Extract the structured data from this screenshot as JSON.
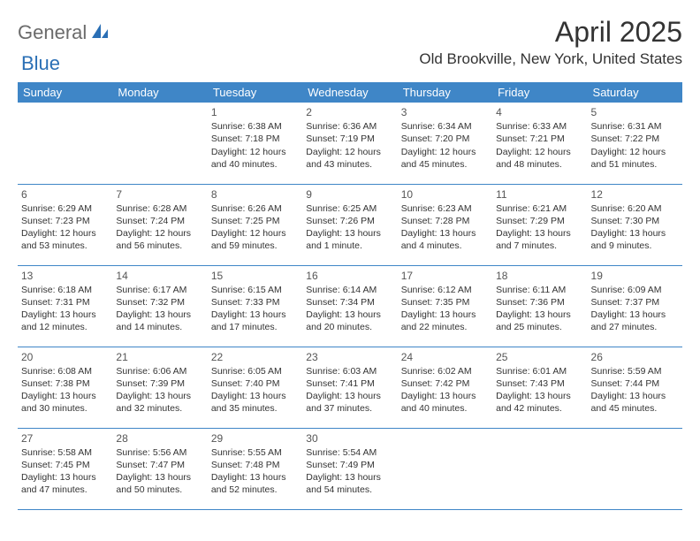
{
  "logo": {
    "part1": "General",
    "part2": "Blue"
  },
  "title": "April 2025",
  "location": "Old Brookville, New York, United States",
  "accent_color": "#3f86c7",
  "logo_color": "#2a6fb5",
  "text_color": "#333333",
  "day_headers": [
    "Sunday",
    "Monday",
    "Tuesday",
    "Wednesday",
    "Thursday",
    "Friday",
    "Saturday"
  ],
  "weeks": [
    [
      null,
      null,
      {
        "n": "1",
        "sr": "6:38 AM",
        "ss": "7:18 PM",
        "dl": "12 hours and 40 minutes."
      },
      {
        "n": "2",
        "sr": "6:36 AM",
        "ss": "7:19 PM",
        "dl": "12 hours and 43 minutes."
      },
      {
        "n": "3",
        "sr": "6:34 AM",
        "ss": "7:20 PM",
        "dl": "12 hours and 45 minutes."
      },
      {
        "n": "4",
        "sr": "6:33 AM",
        "ss": "7:21 PM",
        "dl": "12 hours and 48 minutes."
      },
      {
        "n": "5",
        "sr": "6:31 AM",
        "ss": "7:22 PM",
        "dl": "12 hours and 51 minutes."
      }
    ],
    [
      {
        "n": "6",
        "sr": "6:29 AM",
        "ss": "7:23 PM",
        "dl": "12 hours and 53 minutes."
      },
      {
        "n": "7",
        "sr": "6:28 AM",
        "ss": "7:24 PM",
        "dl": "12 hours and 56 minutes."
      },
      {
        "n": "8",
        "sr": "6:26 AM",
        "ss": "7:25 PM",
        "dl": "12 hours and 59 minutes."
      },
      {
        "n": "9",
        "sr": "6:25 AM",
        "ss": "7:26 PM",
        "dl": "13 hours and 1 minute."
      },
      {
        "n": "10",
        "sr": "6:23 AM",
        "ss": "7:28 PM",
        "dl": "13 hours and 4 minutes."
      },
      {
        "n": "11",
        "sr": "6:21 AM",
        "ss": "7:29 PM",
        "dl": "13 hours and 7 minutes."
      },
      {
        "n": "12",
        "sr": "6:20 AM",
        "ss": "7:30 PM",
        "dl": "13 hours and 9 minutes."
      }
    ],
    [
      {
        "n": "13",
        "sr": "6:18 AM",
        "ss": "7:31 PM",
        "dl": "13 hours and 12 minutes."
      },
      {
        "n": "14",
        "sr": "6:17 AM",
        "ss": "7:32 PM",
        "dl": "13 hours and 14 minutes."
      },
      {
        "n": "15",
        "sr": "6:15 AM",
        "ss": "7:33 PM",
        "dl": "13 hours and 17 minutes."
      },
      {
        "n": "16",
        "sr": "6:14 AM",
        "ss": "7:34 PM",
        "dl": "13 hours and 20 minutes."
      },
      {
        "n": "17",
        "sr": "6:12 AM",
        "ss": "7:35 PM",
        "dl": "13 hours and 22 minutes."
      },
      {
        "n": "18",
        "sr": "6:11 AM",
        "ss": "7:36 PM",
        "dl": "13 hours and 25 minutes."
      },
      {
        "n": "19",
        "sr": "6:09 AM",
        "ss": "7:37 PM",
        "dl": "13 hours and 27 minutes."
      }
    ],
    [
      {
        "n": "20",
        "sr": "6:08 AM",
        "ss": "7:38 PM",
        "dl": "13 hours and 30 minutes."
      },
      {
        "n": "21",
        "sr": "6:06 AM",
        "ss": "7:39 PM",
        "dl": "13 hours and 32 minutes."
      },
      {
        "n": "22",
        "sr": "6:05 AM",
        "ss": "7:40 PM",
        "dl": "13 hours and 35 minutes."
      },
      {
        "n": "23",
        "sr": "6:03 AM",
        "ss": "7:41 PM",
        "dl": "13 hours and 37 minutes."
      },
      {
        "n": "24",
        "sr": "6:02 AM",
        "ss": "7:42 PM",
        "dl": "13 hours and 40 minutes."
      },
      {
        "n": "25",
        "sr": "6:01 AM",
        "ss": "7:43 PM",
        "dl": "13 hours and 42 minutes."
      },
      {
        "n": "26",
        "sr": "5:59 AM",
        "ss": "7:44 PM",
        "dl": "13 hours and 45 minutes."
      }
    ],
    [
      {
        "n": "27",
        "sr": "5:58 AM",
        "ss": "7:45 PM",
        "dl": "13 hours and 47 minutes."
      },
      {
        "n": "28",
        "sr": "5:56 AM",
        "ss": "7:47 PM",
        "dl": "13 hours and 50 minutes."
      },
      {
        "n": "29",
        "sr": "5:55 AM",
        "ss": "7:48 PM",
        "dl": "13 hours and 52 minutes."
      },
      {
        "n": "30",
        "sr": "5:54 AM",
        "ss": "7:49 PM",
        "dl": "13 hours and 54 minutes."
      },
      null,
      null,
      null
    ]
  ],
  "labels": {
    "sunrise": "Sunrise:",
    "sunset": "Sunset:",
    "daylight": "Daylight:"
  }
}
